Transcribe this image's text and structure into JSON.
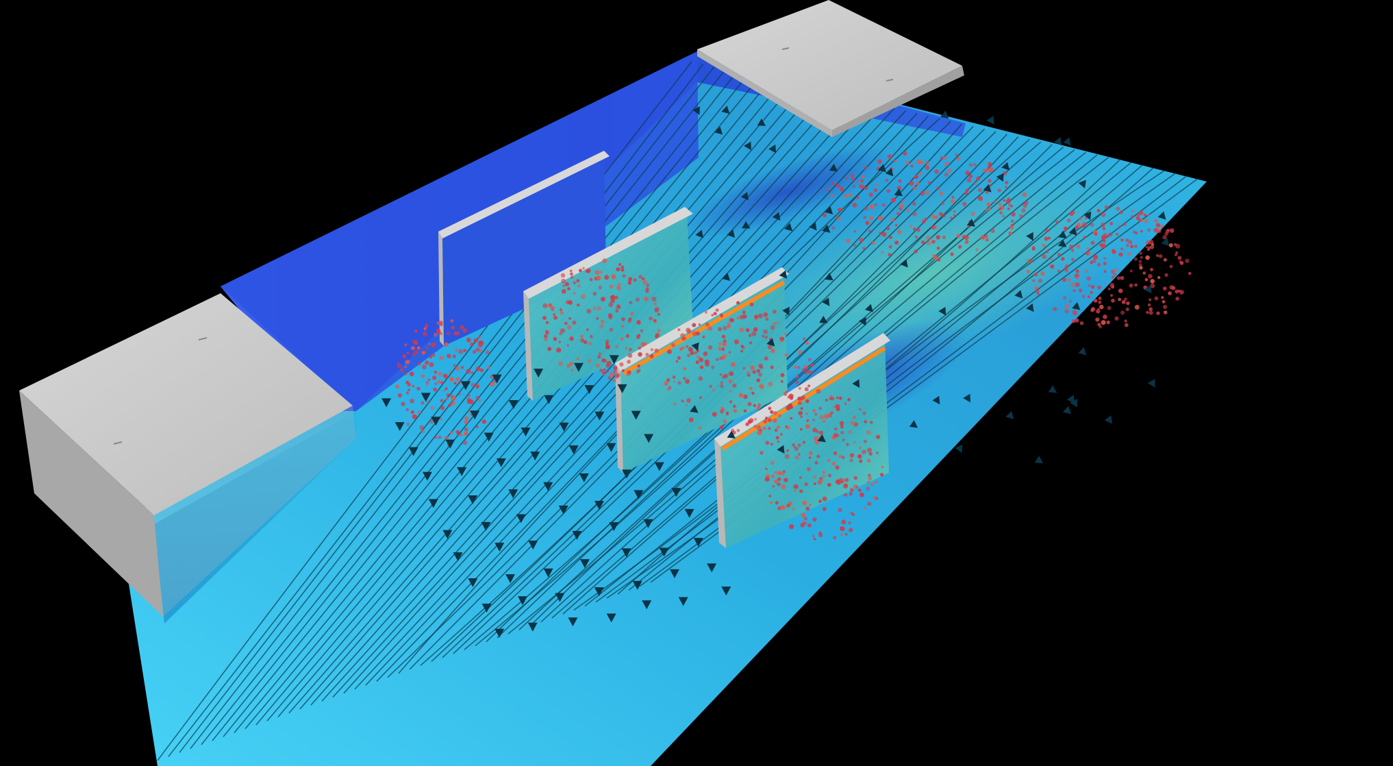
{
  "scene": {
    "colors": {
      "background": "#000000",
      "floor_light": "#3cc8f0",
      "floor_mid": "#1f9fd8",
      "back_wall": "#2f57e6",
      "back_wall_deep": "#2240c8",
      "box_top": "#cfcfcf",
      "box_side": "#a9a9a9",
      "baffle_face": "#4fb8c0",
      "baffle_top": "#d8d8d8",
      "hot_streak": "#ff8a1e",
      "particle": "#d23a4a",
      "streamline": "#0c3a4c",
      "arrow": "#0b3446"
    },
    "objects": {
      "inlet_box": "inlet-block",
      "outlet_box": "outlet-block",
      "baffles": [
        "baffle-1",
        "baffle-2",
        "baffle-3",
        "baffle-4"
      ],
      "streamline_count": 46,
      "particle_clouds": 6
    }
  }
}
